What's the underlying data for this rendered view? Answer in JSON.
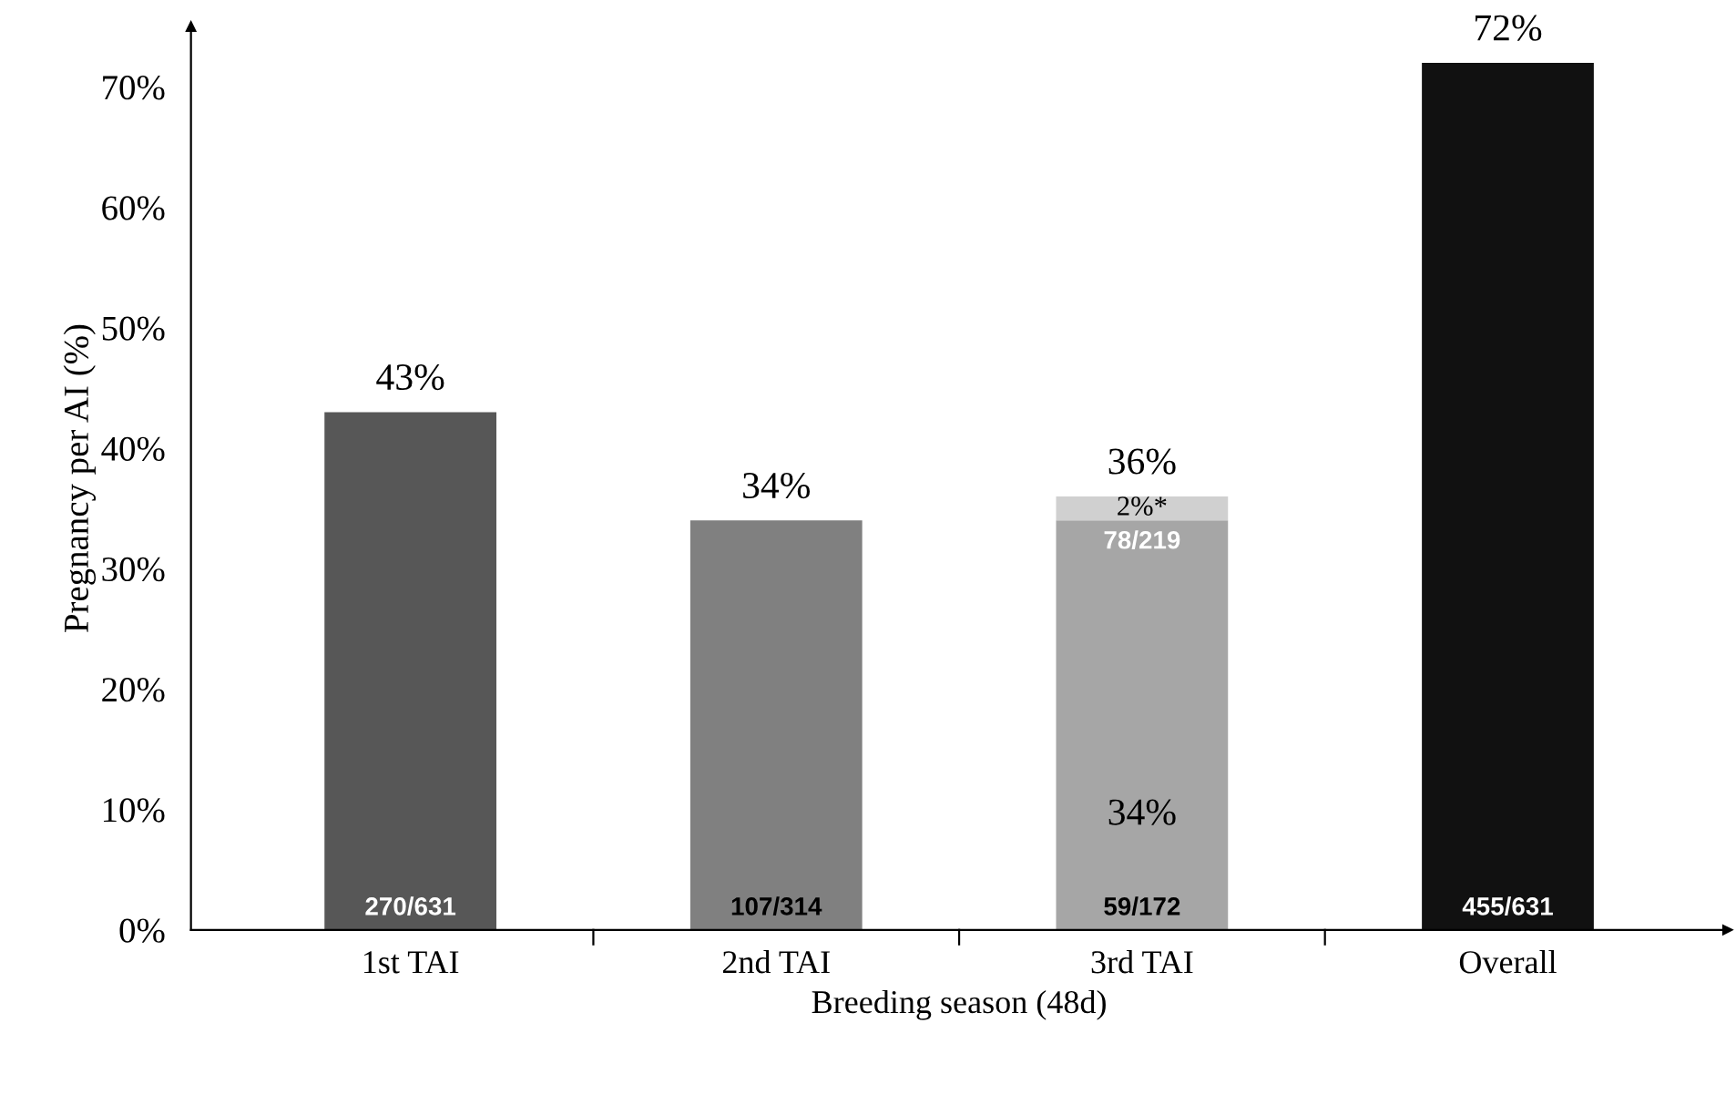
{
  "chart_data": {
    "type": "bar",
    "stacked": true,
    "xlabel": "Breeding season (48d)",
    "ylabel": "Pregnancy per AI (%)",
    "categories": [
      "1st TAI",
      "2nd TAI",
      "3rd TAI",
      "Overall"
    ],
    "series": [
      {
        "colors": [
          "#575757",
          "#808080",
          "#a6a6a6",
          "#111111"
        ],
        "values": [
          43,
          34,
          34,
          72
        ],
        "value_labels": [
          "270/631",
          "107/314",
          "59/172",
          "455/631"
        ]
      },
      {
        "colors": [
          "#d0d0d0",
          "#d0d0d0",
          "#d0d0d0",
          "#d0d0d0"
        ],
        "values": [
          null,
          null,
          2,
          null
        ],
        "value_labels": [
          null,
          null,
          "2%*",
          null
        ]
      }
    ],
    "totals": [
      "43%",
      "34%",
      "36%",
      "72%"
    ],
    "annotations": [
      "34%",
      "78/219"
    ],
    "ylim": [
      0,
      75
    ],
    "yticks": [
      {
        "value": 0,
        "label": "0%"
      },
      {
        "value": 10,
        "label": "10%"
      },
      {
        "value": 20,
        "label": "20%"
      },
      {
        "value": 30,
        "label": "30%"
      },
      {
        "value": 40,
        "label": "40%"
      },
      {
        "value": 50,
        "label": "50%"
      },
      {
        "value": 60,
        "label": "60%"
      },
      {
        "value": 70,
        "label": "70%"
      }
    ],
    "grid": false,
    "legend": false
  }
}
